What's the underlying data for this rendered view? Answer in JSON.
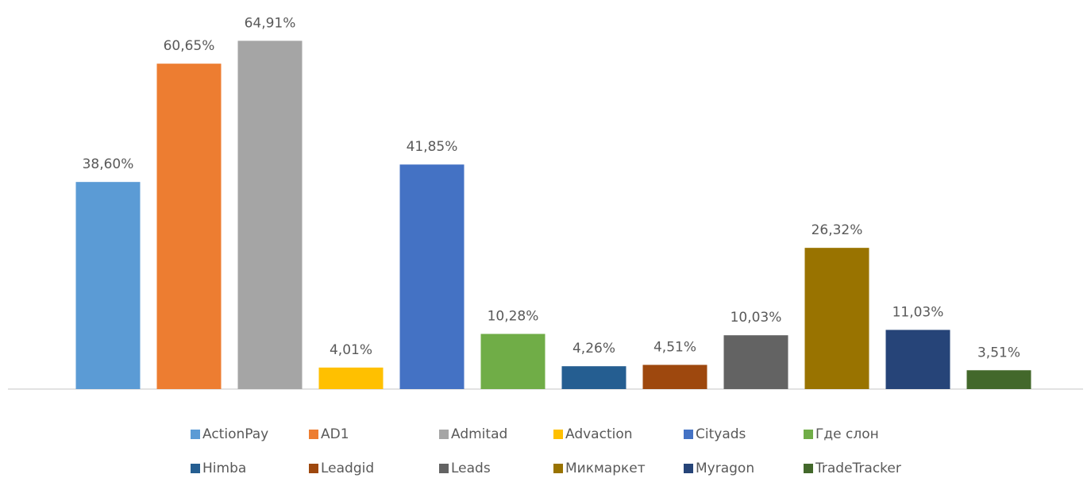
{
  "chart_data": {
    "type": "bar",
    "series": [
      {
        "name": "ActionPay",
        "color": "#5b9bd5",
        "values": [
          38.6
        ],
        "value_labels": [
          "38,60%"
        ]
      },
      {
        "name": "AD1",
        "color": "#ed7d31",
        "values": [
          60.65
        ],
        "value_labels": [
          "60,65%"
        ]
      },
      {
        "name": "Admitad",
        "color": "#a5a5a5",
        "values": [
          64.91
        ],
        "value_labels": [
          "64,91%"
        ]
      },
      {
        "name": "Advaction",
        "color": "#ffc000",
        "values": [
          4.01
        ],
        "value_labels": [
          "4,01%"
        ]
      },
      {
        "name": "Cityads",
        "color": "#4472c4",
        "values": [
          41.85
        ],
        "value_labels": [
          "41,85%"
        ]
      },
      {
        "name": "Где слон",
        "color": "#70ad47",
        "values": [
          10.28
        ],
        "value_labels": [
          "10,28%"
        ]
      },
      {
        "name": "Himba",
        "color": "#255e91",
        "values": [
          4.26
        ],
        "value_labels": [
          "4,26%"
        ]
      },
      {
        "name": "Leadgid",
        "color": "#9e480e",
        "values": [
          4.51
        ],
        "value_labels": [
          "4,51%"
        ]
      },
      {
        "name": "Leads",
        "color": "#636363",
        "values": [
          10.03
        ],
        "value_labels": [
          "10,03%"
        ]
      },
      {
        "name": "Микмаркет",
        "color": "#997300",
        "values": [
          26.32
        ],
        "value_labels": [
          "26,32%"
        ]
      },
      {
        "name": "Myragon",
        "color": "#264478",
        "values": [
          11.03
        ],
        "value_labels": [
          "11,03%"
        ]
      },
      {
        "name": "TradeTracker",
        "color": "#43682b",
        "values": [
          3.51
        ],
        "value_labels": [
          "3,51%"
        ]
      }
    ],
    "ylim": [
      0,
      70
    ],
    "legend": "bottom"
  }
}
